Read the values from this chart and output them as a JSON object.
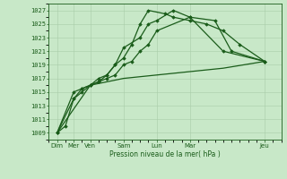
{
  "xlabel": "Pression niveau de la mer( hPa )",
  "background_color": "#c8e8c8",
  "grid_color": "#a8cca8",
  "line_color": "#1a5c1a",
  "marker_color": "#1a5c1a",
  "ylim": [
    1008,
    1028
  ],
  "yticks": [
    1009,
    1011,
    1013,
    1015,
    1017,
    1019,
    1021,
    1023,
    1025,
    1027
  ],
  "xlim": [
    0,
    14
  ],
  "xtick_positions": [
    0.5,
    1.5,
    2.5,
    4.5,
    6.5,
    8.5,
    13.0
  ],
  "xtick_labels": [
    "Dim",
    "Mer",
    "Ven",
    "Sam",
    "Lun",
    "Mar",
    "Jeu"
  ],
  "series": [
    {
      "x": [
        0.5,
        1.0,
        1.5,
        2.0,
        2.5,
        3.0,
        3.5,
        4.0,
        4.5,
        5.0,
        5.5,
        6.0,
        6.5,
        8.5,
        10.5,
        13.0
      ],
      "y": [
        1009,
        1010,
        1014,
        1015,
        1016,
        1016.5,
        1017,
        1017.5,
        1019,
        1019.5,
        1021,
        1022,
        1024,
        1026,
        1021,
        1019.5
      ],
      "marker": "D",
      "markersize": 1.8,
      "linewidth": 0.9
    },
    {
      "x": [
        0.5,
        1.5,
        2.0,
        2.5,
        3.0,
        3.5,
        4.0,
        4.5,
        5.5,
        6.0,
        6.5,
        7.5,
        8.5,
        10.0,
        11.0,
        13.0
      ],
      "y": [
        1009,
        1014,
        1015.5,
        1016,
        1016.5,
        1017.5,
        1019,
        1021.5,
        1023,
        1025,
        1025.5,
        1027,
        1026,
        1025.5,
        1021,
        1019.5
      ],
      "marker": "D",
      "markersize": 1.8,
      "linewidth": 0.9
    },
    {
      "x": [
        0.5,
        1.5,
        2.0,
        2.5,
        3.0,
        3.5,
        4.0,
        4.5,
        5.0,
        5.5,
        6.0,
        7.0,
        7.5,
        8.5,
        9.5,
        10.5,
        11.5,
        13.0
      ],
      "y": [
        1009,
        1015,
        1015.5,
        1016,
        1017,
        1017.5,
        1019,
        1020,
        1022,
        1025,
        1027,
        1026.5,
        1026,
        1025.5,
        1025,
        1024,
        1022,
        1019.5
      ],
      "marker": "D",
      "markersize": 1.8,
      "linewidth": 0.9
    },
    {
      "x": [
        0.5,
        2.5,
        4.5,
        6.5,
        8.5,
        10.5,
        13.0
      ],
      "y": [
        1009,
        1016,
        1017,
        1017.5,
        1018,
        1018.5,
        1019.5
      ],
      "marker": null,
      "markersize": 0,
      "linewidth": 0.9
    }
  ]
}
